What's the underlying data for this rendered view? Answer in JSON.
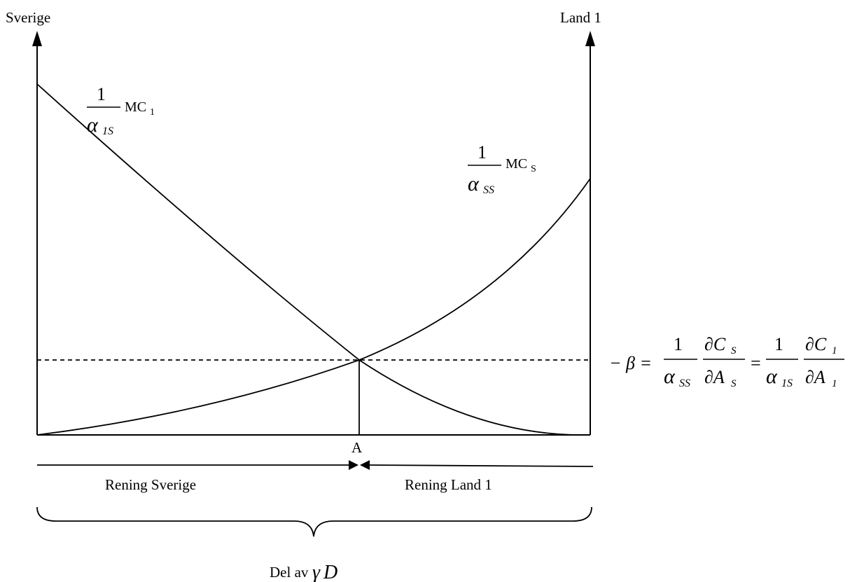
{
  "axes": {
    "left_label": "Sverige",
    "right_label": "Land 1"
  },
  "curves": {
    "mc1": {
      "num": "1",
      "alpha": "α",
      "sub": "1S",
      "mc": "MC",
      "mc_sub": "1"
    },
    "mcs": {
      "num": "1",
      "alpha": "α",
      "sub": "SS",
      "mc": "MC",
      "mc_sub": "S"
    }
  },
  "intersection": {
    "label": "A"
  },
  "equation": {
    "lhs": "− β =",
    "t1": {
      "num": "1",
      "alpha": "α",
      "sub": "SS",
      "dnum": "∂C",
      "dnum_sub": "S",
      "dden": "∂A",
      "dden_sub": "S"
    },
    "eq": "=",
    "t2": {
      "num": "1",
      "alpha": "α",
      "sub": "1S",
      "dnum": "∂C",
      "dnum_sub": "1",
      "dden": "∂A",
      "dden_sub": "1"
    }
  },
  "arrows": {
    "left_label": "Rening Sverige",
    "right_label": "Rening Land 1"
  },
  "brace": {
    "label": "Del av",
    "symbol": "γ",
    "var": "D"
  }
}
